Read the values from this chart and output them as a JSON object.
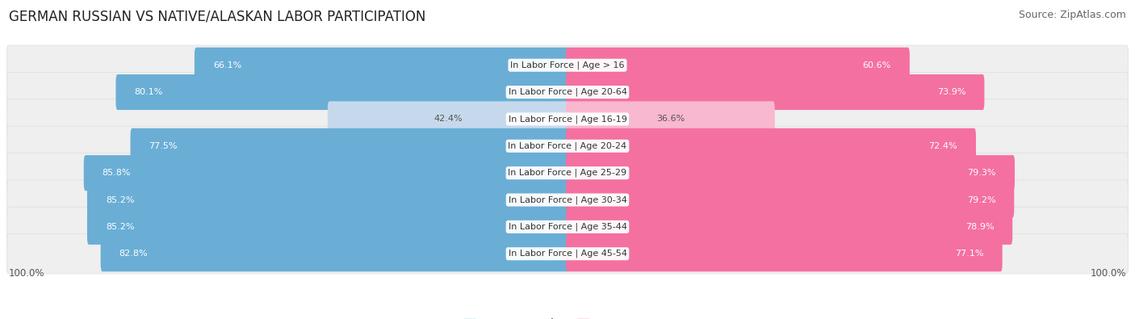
{
  "title": "GERMAN RUSSIAN VS NATIVE/ALASKAN LABOR PARTICIPATION",
  "source": "Source: ZipAtlas.com",
  "categories": [
    "In Labor Force | Age > 16",
    "In Labor Force | Age 20-64",
    "In Labor Force | Age 16-19",
    "In Labor Force | Age 20-24",
    "In Labor Force | Age 25-29",
    "In Labor Force | Age 30-34",
    "In Labor Force | Age 35-44",
    "In Labor Force | Age 45-54"
  ],
  "german_russian": [
    66.1,
    80.1,
    42.4,
    77.5,
    85.8,
    85.2,
    85.2,
    82.8
  ],
  "native_alaskan": [
    60.6,
    73.9,
    36.6,
    72.4,
    79.3,
    79.2,
    78.9,
    77.1
  ],
  "bar_max": 100.0,
  "blue_color": "#6aaed6",
  "blue_light_color": "#c6d9ec",
  "pink_color": "#f470a0",
  "pink_light_color": "#f8b8d0",
  "row_bg_color": "#efefef",
  "row_alt_bg_color": "#e8e8e8",
  "title_fontsize": 12,
  "source_fontsize": 9,
  "label_fontsize": 8,
  "cat_fontsize": 8,
  "legend_fontsize": 9,
  "axis_label_fontsize": 8.5,
  "figure_bg": "#ffffff"
}
